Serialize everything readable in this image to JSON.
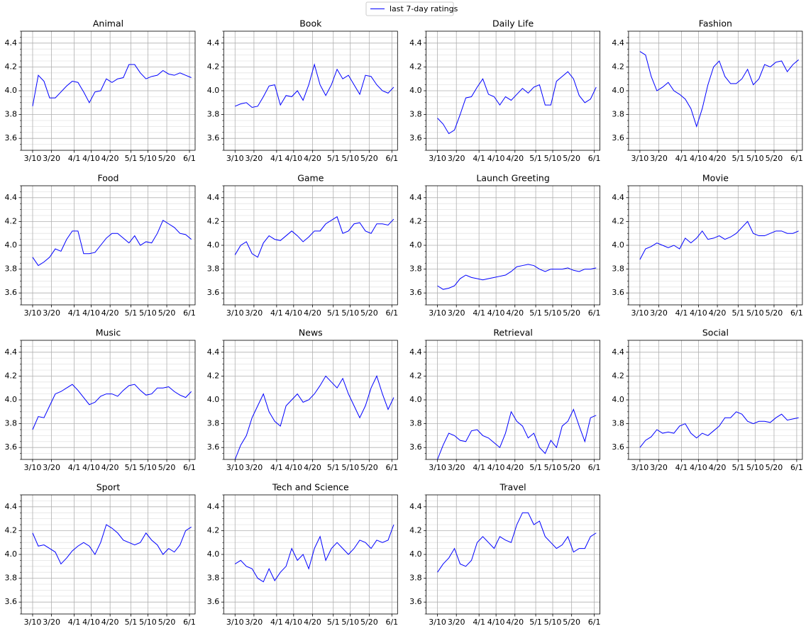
{
  "chart_data": {
    "type": "line",
    "legend": "last 7-day ratings",
    "legend_loc": "upper center",
    "color": "#0000ff",
    "grid": true,
    "x": [
      "3/10",
      "3/13",
      "3/16",
      "3/19",
      "3/22",
      "3/25",
      "3/28",
      "3/31",
      "4/3",
      "4/6",
      "4/9",
      "4/12",
      "4/15",
      "4/18",
      "4/21",
      "4/24",
      "4/27",
      "4/30",
      "5/3",
      "5/6",
      "5/9",
      "5/12",
      "5/15",
      "5/18",
      "5/21",
      "5/24",
      "5/27",
      "5/30",
      "6/2"
    ],
    "xlim": [
      "3/4",
      "6/4"
    ],
    "xticks": [
      "3/10",
      "3/20",
      "4/1",
      "4/10",
      "4/20",
      "5/1",
      "5/10",
      "5/20",
      "6/1"
    ],
    "ylim": [
      3.5,
      4.5
    ],
    "yticks": [
      3.6,
      3.8,
      {
        "value": 4,
        "label": "4.0"
      },
      4.2,
      4.4
    ],
    "yminorticks": [
      3.5,
      3.55,
      3.65,
      3.7,
      3.75,
      3.85,
      3.9,
      3.95,
      4.05,
      4.1,
      4.15,
      4.25,
      4.3,
      4.35,
      4.45,
      4.5
    ],
    "panels": [
      {
        "title": "Animal",
        "values": [
          3.87,
          4.13,
          4.08,
          3.94,
          3.94,
          3.99,
          4.04,
          4.08,
          4.07,
          3.99,
          3.9,
          3.99,
          4.0,
          4.1,
          4.07,
          4.1,
          4.11,
          4.22,
          4.22,
          4.15,
          4.1,
          4.12,
          4.13,
          4.17,
          4.14,
          4.13,
          4.15,
          4.13,
          4.11
        ]
      },
      {
        "title": "Book",
        "values": [
          3.87,
          3.89,
          3.9,
          3.86,
          3.87,
          3.95,
          4.04,
          4.05,
          3.88,
          3.96,
          3.95,
          4.0,
          3.92,
          4.05,
          4.22,
          4.05,
          3.96,
          4.05,
          4.18,
          4.1,
          4.13,
          4.05,
          3.97,
          4.13,
          4.12,
          4.05,
          4.0,
          3.98,
          4.03
        ]
      },
      {
        "title": "Daily Life",
        "values": [
          3.77,
          3.72,
          3.64,
          3.67,
          3.8,
          3.94,
          3.95,
          4.03,
          4.1,
          3.97,
          3.95,
          3.88,
          3.95,
          3.92,
          3.97,
          4.02,
          3.98,
          4.03,
          4.05,
          3.88,
          3.88,
          4.08,
          4.12,
          4.16,
          4.1,
          3.96,
          3.9,
          3.93,
          4.03
        ]
      },
      {
        "title": "Fashion",
        "values": [
          4.33,
          4.3,
          4.12,
          4.0,
          4.03,
          4.07,
          4.0,
          3.97,
          3.93,
          3.85,
          3.7,
          3.85,
          4.05,
          4.2,
          4.25,
          4.12,
          4.06,
          4.06,
          4.1,
          4.18,
          4.05,
          4.1,
          4.22,
          4.2,
          4.24,
          4.25,
          4.16,
          4.22,
          4.26
        ]
      },
      {
        "title": "Food",
        "values": [
          3.9,
          3.83,
          3.86,
          3.9,
          3.97,
          3.95,
          4.05,
          4.12,
          4.12,
          3.93,
          3.93,
          3.94,
          4.0,
          4.06,
          4.1,
          4.1,
          4.06,
          4.02,
          4.08,
          4.0,
          4.03,
          4.02,
          4.1,
          4.21,
          4.18,
          4.15,
          4.1,
          4.09,
          4.05
        ]
      },
      {
        "title": "Game",
        "values": [
          3.92,
          4.0,
          4.03,
          3.93,
          3.9,
          4.02,
          4.08,
          4.05,
          4.04,
          4.08,
          4.12,
          4.08,
          4.03,
          4.07,
          4.12,
          4.12,
          4.18,
          4.21,
          4.24,
          4.1,
          4.12,
          4.18,
          4.19,
          4.12,
          4.1,
          4.18,
          4.18,
          4.17,
          4.22
        ]
      },
      {
        "title": "Launch Greeting",
        "values": [
          3.66,
          3.63,
          3.64,
          3.66,
          3.72,
          3.75,
          3.73,
          3.72,
          3.71,
          3.72,
          3.73,
          3.74,
          3.75,
          3.78,
          3.82,
          3.83,
          3.84,
          3.83,
          3.8,
          3.78,
          3.8,
          3.8,
          3.8,
          3.81,
          3.79,
          3.78,
          3.8,
          3.8,
          3.81
        ]
      },
      {
        "title": "Movie",
        "values": [
          3.88,
          3.97,
          3.99,
          4.02,
          4.0,
          3.98,
          4.0,
          3.97,
          4.06,
          4.02,
          4.06,
          4.12,
          4.05,
          4.06,
          4.08,
          4.05,
          4.07,
          4.1,
          4.15,
          4.2,
          4.1,
          4.08,
          4.08,
          4.1,
          4.12,
          4.12,
          4.1,
          4.1,
          4.12
        ]
      },
      {
        "title": "Music",
        "values": [
          3.75,
          3.86,
          3.85,
          3.95,
          4.05,
          4.07,
          4.1,
          4.13,
          4.08,
          4.02,
          3.96,
          3.98,
          4.03,
          4.05,
          4.05,
          4.03,
          4.08,
          4.12,
          4.13,
          4.08,
          4.04,
          4.05,
          4.1,
          4.1,
          4.11,
          4.07,
          4.04,
          4.02,
          4.07
        ]
      },
      {
        "title": "News",
        "values": [
          3.5,
          3.62,
          3.7,
          3.85,
          3.95,
          4.05,
          3.9,
          3.82,
          3.78,
          3.95,
          4.0,
          4.05,
          3.98,
          4.0,
          4.05,
          4.12,
          4.2,
          4.15,
          4.1,
          4.18,
          4.05,
          3.95,
          3.85,
          3.95,
          4.1,
          4.2,
          4.05,
          3.92,
          4.02
        ]
      },
      {
        "title": "Retrieval",
        "values": [
          3.5,
          3.62,
          3.72,
          3.7,
          3.66,
          3.65,
          3.74,
          3.75,
          3.7,
          3.68,
          3.64,
          3.6,
          3.72,
          3.9,
          3.82,
          3.78,
          3.68,
          3.72,
          3.6,
          3.55,
          3.66,
          3.6,
          3.78,
          3.82,
          3.92,
          3.78,
          3.65,
          3.85,
          3.87
        ]
      },
      {
        "title": "Social",
        "values": [
          3.6,
          3.66,
          3.69,
          3.75,
          3.72,
          3.73,
          3.72,
          3.78,
          3.8,
          3.72,
          3.68,
          3.72,
          3.7,
          3.74,
          3.78,
          3.85,
          3.85,
          3.9,
          3.88,
          3.82,
          3.8,
          3.82,
          3.82,
          3.81,
          3.85,
          3.88,
          3.83,
          3.84,
          3.85
        ]
      },
      {
        "title": "Sport",
        "values": [
          4.18,
          4.07,
          4.08,
          4.05,
          4.02,
          3.92,
          3.97,
          4.03,
          4.07,
          4.1,
          4.07,
          4.0,
          4.1,
          4.25,
          4.22,
          4.18,
          4.12,
          4.1,
          4.08,
          4.1,
          4.18,
          4.12,
          4.08,
          4.0,
          4.05,
          4.02,
          4.08,
          4.2,
          4.23
        ]
      },
      {
        "title": "Tech and Science",
        "values": [
          3.92,
          3.95,
          3.9,
          3.88,
          3.8,
          3.77,
          3.88,
          3.78,
          3.85,
          3.9,
          4.05,
          3.95,
          4.0,
          3.88,
          4.05,
          4.15,
          3.95,
          4.05,
          4.1,
          4.05,
          4.0,
          4.05,
          4.12,
          4.1,
          4.05,
          4.12,
          4.1,
          4.12,
          4.25
        ]
      },
      {
        "title": "Travel",
        "values": [
          3.85,
          3.92,
          3.97,
          4.05,
          3.92,
          3.9,
          3.95,
          4.1,
          4.15,
          4.1,
          4.05,
          4.15,
          4.12,
          4.1,
          4.25,
          4.35,
          4.35,
          4.25,
          4.28,
          4.15,
          4.1,
          4.05,
          4.08,
          4.15,
          4.02,
          4.05,
          4.05,
          4.15,
          4.18
        ]
      }
    ]
  }
}
